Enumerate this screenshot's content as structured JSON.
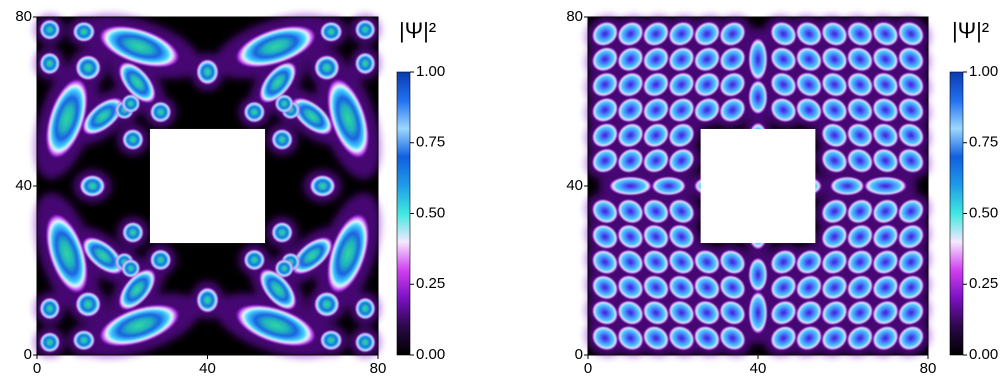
{
  "chart_data": [
    {
      "type": "heatmap",
      "xlim": [
        0,
        80
      ],
      "ylim": [
        0,
        80
      ],
      "xticks": [
        0,
        40,
        80
      ],
      "yticks": [
        0,
        40,
        80
      ],
      "colorbar": {
        "label": "|Ψ|²",
        "lim": [
          0,
          1
        ],
        "ticks": [
          {
            "value": 0,
            "label": "0.00"
          },
          {
            "value": 0.25,
            "label": "0.25"
          },
          {
            "value": 0.5,
            "label": "0.50"
          },
          {
            "value": 0.75,
            "label": "0.75"
          },
          {
            "value": 1,
            "label": "1.00"
          }
        ],
        "colormap": [
          "#000000",
          "#2a0848",
          "#7a10c0",
          "#d040f0",
          "#f4e8ff",
          "#40e8e0",
          "#1e9ce8",
          "#1060e0",
          "#9cd8ff",
          "#2070f0",
          "#0a3ab0"
        ]
      }
    },
    {
      "type": "heatmap",
      "xlim": [
        0,
        80
      ],
      "ylim": [
        0,
        80
      ],
      "xticks": [
        0,
        40,
        80
      ],
      "yticks": [
        0,
        40,
        80
      ],
      "colorbar": {
        "label": "|Ψ|²",
        "lim": [
          0,
          1
        ],
        "ticks": [
          {
            "value": 0,
            "label": "0.00"
          },
          {
            "value": 0.25,
            "label": "0.25"
          },
          {
            "value": 0.5,
            "label": "0.50"
          },
          {
            "value": 0.75,
            "label": "0.75"
          },
          {
            "value": 1,
            "label": "1.00"
          }
        ],
        "colormap": [
          "#000000",
          "#2a0848",
          "#7a10c0",
          "#d040f0",
          "#f4e8ff",
          "#40e8e0",
          "#1e9ce8",
          "#1060e0",
          "#9cd8ff",
          "#2070f0",
          "#0a3ab0"
        ]
      }
    }
  ]
}
